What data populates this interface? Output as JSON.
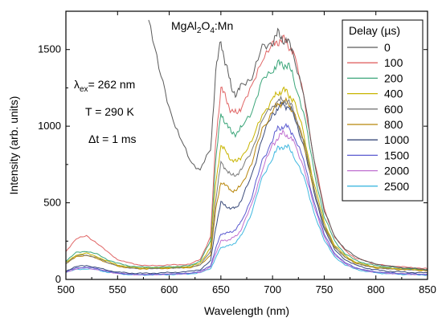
{
  "chart_data": {
    "type": "line",
    "title": "",
    "xlabel": "Wavelength (nm)",
    "ylabel": "Intensity (arb. units)",
    "xlim": [
      500,
      850
    ],
    "ylim": [
      0,
      1750
    ],
    "xticks": [
      500,
      550,
      600,
      650,
      700,
      750,
      800,
      850
    ],
    "yticks": [
      0,
      500,
      1000,
      1500
    ],
    "grid": false,
    "legend": {
      "title": "Delay (µs)",
      "position": "top-right"
    },
    "annotations": [
      {
        "main": "MgAl",
        "sub1": "2",
        "mid": "O",
        "sub2": "4",
        "tail": ":Mn"
      },
      {
        "main": "λ",
        "sub": "ex",
        "tail": "= 262 nm"
      },
      {
        "text": "T = 290 K"
      },
      {
        "text": "Δt = 1 ms"
      }
    ],
    "x": [
      500,
      510,
      520,
      530,
      540,
      550,
      560,
      570,
      580,
      590,
      600,
      610,
      620,
      630,
      640,
      645,
      650,
      655,
      660,
      665,
      670,
      680,
      690,
      700,
      705,
      710,
      715,
      720,
      730,
      740,
      750,
      760,
      770,
      780,
      790,
      800,
      810,
      820,
      830,
      840,
      850
    ],
    "series": [
      {
        "name": "0",
        "color": "#5a5a5a",
        "values": [
          null,
          null,
          null,
          null,
          null,
          null,
          null,
          null,
          1720,
          1380,
          1120,
          930,
          780,
          710,
          850,
          1350,
          1560,
          1400,
          1250,
          1210,
          1260,
          1330,
          1500,
          1560,
          1600,
          1570,
          1550,
          1480,
          1210,
          780,
          450,
          280,
          200,
          150,
          120,
          100,
          90,
          80,
          75,
          70,
          65
        ]
      },
      {
        "name": "100",
        "color": "#e06565",
        "values": [
          180,
          270,
          280,
          240,
          180,
          130,
          110,
          95,
          90,
          90,
          95,
          95,
          100,
          130,
          280,
          900,
          1250,
          1180,
          1100,
          1080,
          1130,
          1250,
          1450,
          1520,
          1560,
          1560,
          1540,
          1480,
          1210,
          790,
          460,
          280,
          190,
          140,
          120,
          100,
          90,
          85,
          80,
          75,
          70
        ]
      },
      {
        "name": "200",
        "color": "#3ca67a",
        "values": [
          120,
          175,
          185,
          165,
          130,
          105,
          90,
          82,
          80,
          80,
          82,
          85,
          90,
          120,
          250,
          780,
          1080,
          1020,
          960,
          950,
          990,
          1100,
          1290,
          1370,
          1400,
          1410,
          1390,
          1330,
          1090,
          710,
          410,
          250,
          170,
          125,
          105,
          90,
          82,
          77,
          72,
          68,
          65
        ]
      },
      {
        "name": "400",
        "color": "#c8b400",
        "values": [
          110,
          160,
          170,
          150,
          118,
          95,
          82,
          76,
          75,
          76,
          78,
          80,
          84,
          105,
          210,
          620,
          880,
          830,
          780,
          770,
          800,
          900,
          1080,
          1170,
          1220,
          1230,
          1220,
          1170,
          960,
          630,
          370,
          225,
          155,
          115,
          95,
          82,
          76,
          71,
          67,
          64,
          62
        ]
      },
      {
        "name": "600",
        "color": "#7a7a7a",
        "values": [
          105,
          155,
          160,
          142,
          112,
          90,
          78,
          72,
          72,
          73,
          75,
          77,
          80,
          98,
          180,
          520,
          760,
          720,
          680,
          680,
          720,
          840,
          1040,
          1130,
          1160,
          1170,
          1160,
          1110,
          910,
          600,
          350,
          215,
          148,
          110,
          90,
          78,
          72,
          68,
          65,
          62,
          60
        ]
      },
      {
        "name": "800",
        "color": "#b8860b",
        "values": [
          100,
          150,
          155,
          138,
          108,
          88,
          76,
          70,
          70,
          71,
          73,
          75,
          78,
          92,
          160,
          450,
          640,
          610,
          580,
          580,
          620,
          760,
          980,
          1100,
          1140,
          1160,
          1150,
          1100,
          900,
          590,
          345,
          210,
          145,
          108,
          88,
          76,
          70,
          66,
          63,
          60,
          58
        ]
      },
      {
        "name": "1000",
        "color": "#3a4a7a",
        "values": [
          55,
          85,
          90,
          78,
          60,
          48,
          42,
          40,
          40,
          42,
          45,
          48,
          52,
          65,
          120,
          340,
          500,
          480,
          460,
          470,
          520,
          680,
          930,
          1070,
          1120,
          1140,
          1130,
          1080,
          880,
          570,
          330,
          195,
          130,
          95,
          75,
          62,
          55,
          50,
          47,
          44,
          42
        ]
      },
      {
        "name": "1500",
        "color": "#5a5ad0",
        "values": [
          50,
          75,
          80,
          70,
          54,
          42,
          36,
          33,
          33,
          34,
          36,
          38,
          42,
          52,
          90,
          200,
          300,
          300,
          310,
          330,
          380,
          540,
          770,
          920,
          980,
          1000,
          990,
          950,
          780,
          510,
          295,
          170,
          110,
          78,
          60,
          50,
          44,
          40,
          37,
          35,
          33
        ]
      },
      {
        "name": "2000",
        "color": "#c070d0",
        "values": [
          48,
          70,
          75,
          66,
          51,
          40,
          34,
          31,
          31,
          32,
          34,
          36,
          39,
          48,
          80,
          170,
          250,
          255,
          265,
          285,
          330,
          490,
          720,
          870,
          930,
          950,
          940,
          900,
          740,
          480,
          280,
          160,
          104,
          74,
          57,
          47,
          41,
          38,
          35,
          33,
          31
        ]
      },
      {
        "name": "2500",
        "color": "#40b8e0",
        "values": [
          45,
          65,
          70,
          62,
          48,
          38,
          32,
          29,
          29,
          30,
          31,
          33,
          36,
          44,
          70,
          140,
          210,
          215,
          225,
          245,
          290,
          440,
          660,
          800,
          850,
          870,
          860,
          820,
          670,
          440,
          255,
          148,
          96,
          68,
          52,
          43,
          38,
          35,
          32,
          30,
          29
        ]
      }
    ]
  }
}
